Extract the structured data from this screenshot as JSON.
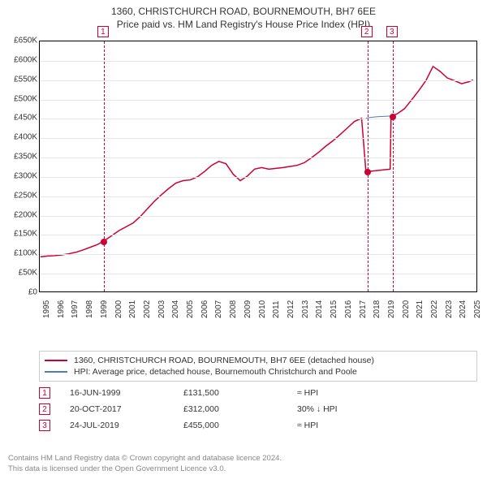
{
  "title_line1": "1360, CHRISTCHURCH ROAD, BOURNEMOUTH, BH7 6EE",
  "title_line2": "Price paid vs. HM Land Registry's House Price Index (HPI)",
  "chart": {
    "type": "line",
    "background_color": "#ffffff",
    "grid_color": "#e6e6e6",
    "axis_color": "#000000",
    "x_range": [
      1995,
      2025.5
    ],
    "y_range": [
      0,
      650000
    ],
    "y_ticks": [
      0,
      50000,
      100000,
      150000,
      200000,
      250000,
      300000,
      350000,
      400000,
      450000,
      500000,
      550000,
      600000,
      650000
    ],
    "y_tick_labels": [
      "£0",
      "£50K",
      "£100K",
      "£150K",
      "£200K",
      "£250K",
      "£300K",
      "£350K",
      "£400K",
      "£450K",
      "£500K",
      "£550K",
      "£600K",
      "£650K"
    ],
    "x_ticks": [
      1995,
      1996,
      1997,
      1998,
      1999,
      2000,
      2001,
      2002,
      2003,
      2004,
      2005,
      2006,
      2007,
      2008,
      2009,
      2010,
      2011,
      2012,
      2013,
      2014,
      2015,
      2016,
      2017,
      2018,
      2019,
      2020,
      2021,
      2022,
      2023,
      2024,
      2025
    ],
    "tick_fontsize": 10,
    "series": [
      {
        "name": "price_paid",
        "color": "#cc0033",
        "width": 1.5,
        "points": [
          [
            1995.0,
            90000
          ],
          [
            1995.5,
            92000
          ],
          [
            1996.0,
            93000
          ],
          [
            1996.5,
            95000
          ],
          [
            1997.0,
            98000
          ],
          [
            1997.5,
            102000
          ],
          [
            1998.0,
            108000
          ],
          [
            1998.5,
            115000
          ],
          [
            1999.0,
            122000
          ],
          [
            1999.46,
            131500
          ],
          [
            2000.0,
            145000
          ],
          [
            2000.5,
            158000
          ],
          [
            2001.0,
            168000
          ],
          [
            2001.5,
            178000
          ],
          [
            2002.0,
            195000
          ],
          [
            2002.5,
            215000
          ],
          [
            2003.0,
            235000
          ],
          [
            2003.5,
            252000
          ],
          [
            2004.0,
            268000
          ],
          [
            2004.5,
            282000
          ],
          [
            2005.0,
            288000
          ],
          [
            2005.5,
            290000
          ],
          [
            2006.0,
            298000
          ],
          [
            2006.5,
            312000
          ],
          [
            2007.0,
            328000
          ],
          [
            2007.5,
            338000
          ],
          [
            2008.0,
            332000
          ],
          [
            2008.5,
            305000
          ],
          [
            2009.0,
            288000
          ],
          [
            2009.5,
            300000
          ],
          [
            2010.0,
            318000
          ],
          [
            2010.5,
            322000
          ],
          [
            2011.0,
            318000
          ],
          [
            2011.5,
            320000
          ],
          [
            2012.0,
            322000
          ],
          [
            2012.5,
            325000
          ],
          [
            2013.0,
            328000
          ],
          [
            2013.5,
            335000
          ],
          [
            2014.0,
            348000
          ],
          [
            2014.5,
            362000
          ],
          [
            2015.0,
            378000
          ],
          [
            2015.5,
            392000
          ],
          [
            2016.0,
            408000
          ],
          [
            2016.5,
            425000
          ],
          [
            2017.0,
            442000
          ],
          [
            2017.5,
            450000
          ],
          [
            2017.8,
            312000
          ],
          [
            2018.0,
            312000
          ],
          [
            2018.5,
            314000
          ],
          [
            2019.0,
            316000
          ],
          [
            2019.5,
            318000
          ],
          [
            2019.56,
            455000
          ],
          [
            2020.0,
            462000
          ],
          [
            2020.5,
            475000
          ],
          [
            2021.0,
            498000
          ],
          [
            2021.5,
            522000
          ],
          [
            2022.0,
            548000
          ],
          [
            2022.5,
            585000
          ],
          [
            2023.0,
            572000
          ],
          [
            2023.5,
            555000
          ],
          [
            2024.0,
            548000
          ],
          [
            2024.5,
            540000
          ],
          [
            2025.0,
            545000
          ],
          [
            2025.3,
            550000
          ]
        ]
      },
      {
        "name": "hpi",
        "color": "#4a7ebb",
        "width": 1,
        "points": [
          [
            2017.8,
            450000
          ],
          [
            2018.0,
            452000
          ],
          [
            2018.5,
            454000
          ],
          [
            2019.0,
            455000
          ],
          [
            2019.56,
            456000
          ]
        ]
      }
    ],
    "markers": [
      {
        "n": "1",
        "x": 1999.46,
        "y": 131500,
        "color": "#cc0033"
      },
      {
        "n": "2",
        "x": 2017.8,
        "y": 312000,
        "color": "#cc0033"
      },
      {
        "n": "3",
        "x": 2019.56,
        "y": 455000,
        "color": "#cc0033"
      }
    ]
  },
  "legend": {
    "border_color": "#cccccc",
    "items": [
      {
        "color": "#cc0033",
        "label": "1360, CHRISTCHURCH ROAD, BOURNEMOUTH, BH7 6EE (detached house)"
      },
      {
        "color": "#4a7ebb",
        "label": "HPI: Average price, detached house, Bournemouth Christchurch and Poole"
      }
    ]
  },
  "transactions": [
    {
      "n": "1",
      "color": "#cc0033",
      "date": "16-JUN-1999",
      "price": "£131,500",
      "delta": "≈ HPI"
    },
    {
      "n": "2",
      "color": "#cc0033",
      "date": "20-OCT-2017",
      "price": "£312,000",
      "delta": "30% ↓ HPI"
    },
    {
      "n": "3",
      "color": "#cc0033",
      "date": "24-JUL-2019",
      "price": "£455,000",
      "delta": "≈ HPI"
    }
  ],
  "footer_line1": "Contains HM Land Registry data © Crown copyright and database licence 2024.",
  "footer_line2": "This data is licensed under the Open Government Licence v3.0."
}
